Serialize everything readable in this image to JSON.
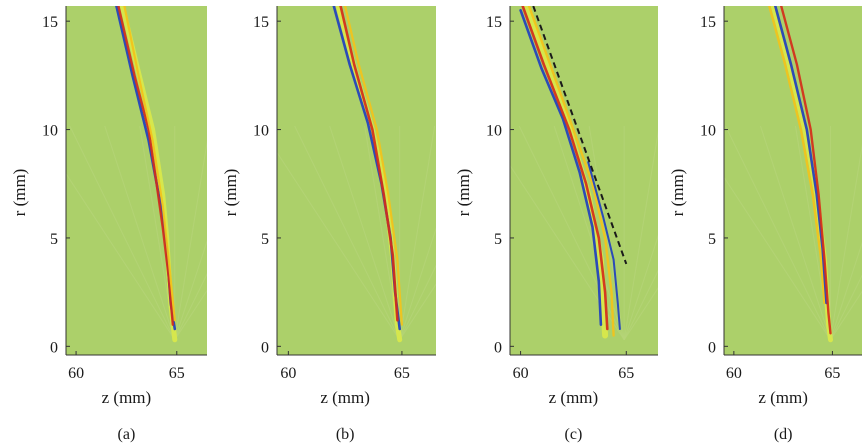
{
  "chart_data": [
    {
      "type": "heatmap",
      "caption": "(a)",
      "xlabel": "z (mm)",
      "ylabel": "r (mm)",
      "xticks": [
        "60",
        "65"
      ],
      "yticks": [
        "0",
        "5",
        "10",
        "15"
      ],
      "xlim": [
        59.5,
        66.5
      ],
      "ylim": [
        -0.4,
        15.7
      ],
      "wavefronts": [
        {
          "color": "#d9e84a",
          "width": 5,
          "points": [
            [
              62.3,
              15.7
            ],
            [
              63.0,
              13
            ],
            [
              63.8,
              10
            ],
            [
              64.3,
              7
            ],
            [
              64.5,
              5
            ],
            [
              64.7,
              2
            ],
            [
              64.9,
              0.3
            ]
          ]
        },
        {
          "color": "#1f3fbf",
          "width": 2.6,
          "points": [
            [
              62.0,
              15.7
            ],
            [
              62.8,
              12.5
            ],
            [
              63.6,
              9.5
            ],
            [
              64.2,
              6.5
            ],
            [
              64.5,
              4.5
            ],
            [
              64.7,
              2
            ],
            [
              64.9,
              0.8
            ]
          ]
        },
        {
          "color": "#d42c1a",
          "width": 2.4,
          "points": [
            [
              62.1,
              15.7
            ],
            [
              62.9,
              12.5
            ],
            [
              63.6,
              10
            ],
            [
              64.0,
              7.5
            ],
            [
              64.3,
              5.5
            ],
            [
              64.6,
              3.2
            ],
            [
              64.8,
              1
            ]
          ]
        },
        {
          "color": "#f3c21a",
          "width": 2.2,
          "points": [
            [
              62.4,
              15.7
            ],
            [
              63.1,
              12.5
            ],
            [
              63.8,
              9.5
            ],
            [
              64.3,
              6.5
            ],
            [
              64.6,
              4
            ],
            [
              64.9,
              1.2
            ]
          ]
        }
      ]
    },
    {
      "type": "heatmap",
      "caption": "(b)",
      "xlabel": "z (mm)",
      "ylabel": "r (mm)",
      "xticks": [
        "60",
        "65"
      ],
      "yticks": [
        "0",
        "5",
        "10",
        "15"
      ],
      "xlim": [
        59.5,
        66.5
      ],
      "ylim": [
        -0.4,
        15.7
      ],
      "wavefronts": [
        {
          "color": "#d9e84a",
          "width": 5,
          "points": [
            [
              62.2,
              15.7
            ],
            [
              63.0,
              12.5
            ],
            [
              63.7,
              10
            ],
            [
              64.3,
              7
            ],
            [
              64.6,
              4
            ],
            [
              64.8,
              1
            ],
            [
              64.9,
              0.3
            ]
          ]
        },
        {
          "color": "#1f3fbf",
          "width": 2.6,
          "points": [
            [
              62.0,
              15.7
            ],
            [
              62.7,
              13
            ],
            [
              63.5,
              10.3
            ],
            [
              64.1,
              7.5
            ],
            [
              64.5,
              5
            ],
            [
              64.7,
              2.5
            ],
            [
              64.9,
              0.8
            ]
          ]
        },
        {
          "color": "#d42c1a",
          "width": 2.6,
          "points": [
            [
              62.3,
              15.7
            ],
            [
              62.9,
              13
            ],
            [
              63.7,
              10
            ],
            [
              64.2,
              7
            ],
            [
              64.6,
              4.2
            ],
            [
              64.8,
              1.2
            ]
          ]
        },
        {
          "color": "#f3c21a",
          "width": 2.2,
          "points": [
            [
              62.5,
              15.7
            ],
            [
              63.1,
              13
            ],
            [
              63.9,
              10
            ],
            [
              64.4,
              7
            ],
            [
              64.8,
              4
            ],
            [
              65.0,
              1
            ]
          ]
        }
      ]
    },
    {
      "type": "heatmap",
      "caption": "(c)",
      "xlabel": "z (mm)",
      "ylabel": "r (mm)",
      "xticks": [
        "60",
        "65"
      ],
      "yticks": [
        "0",
        "5",
        "10",
        "15"
      ],
      "xlim": [
        59.5,
        66.5
      ],
      "ylim": [
        -0.4,
        15.7
      ],
      "dashed_line": [
        [
          60.6,
          15.7
        ],
        [
          65.0,
          3.8
        ]
      ],
      "wavefronts": [
        {
          "color": "#d9e84a",
          "width": 6,
          "points": [
            [
              60.3,
              15.7
            ],
            [
              61.2,
              13
            ],
            [
              62.3,
              10
            ],
            [
              63.2,
              7
            ],
            [
              63.8,
              4
            ],
            [
              64.0,
              0.5
            ]
          ]
        },
        {
          "color": "#1f3fbf",
          "width": 2.6,
          "points": [
            [
              60.0,
              15.5
            ],
            [
              61.0,
              12.8
            ],
            [
              62.0,
              10.5
            ],
            [
              62.8,
              8
            ],
            [
              63.4,
              5.5
            ],
            [
              63.7,
              3
            ],
            [
              63.8,
              1
            ]
          ]
        },
        {
          "color": "#d42c1a",
          "width": 2.6,
          "points": [
            [
              60.1,
              15.7
            ],
            [
              61.1,
              13
            ],
            [
              62.3,
              10
            ],
            [
              63.1,
              7.5
            ],
            [
              63.7,
              5
            ],
            [
              64.0,
              2.5
            ],
            [
              64.1,
              0.8
            ]
          ]
        },
        {
          "color": "#f3c21a",
          "width": 2.4,
          "points": [
            [
              60.4,
              15.7
            ],
            [
              61.4,
              13
            ],
            [
              62.5,
              10
            ],
            [
              63.4,
              7.5
            ],
            [
              64.0,
              5
            ],
            [
              64.3,
              2.5
            ],
            [
              64.4,
              0.5
            ]
          ]
        },
        {
          "color": "#1f3fbf",
          "width": 2.0,
          "points": [
            [
              63.2,
              8.5
            ],
            [
              63.9,
              6
            ],
            [
              64.4,
              4
            ],
            [
              64.6,
              2
            ],
            [
              64.7,
              0.8
            ]
          ]
        }
      ]
    },
    {
      "type": "heatmap",
      "caption": "(d)",
      "xlabel": "z (mm)",
      "ylabel": "r (mm)",
      "xticks": [
        "60",
        "65"
      ],
      "yticks": [
        "0",
        "5",
        "10",
        "15"
      ],
      "xlim": [
        59.5,
        66.5
      ],
      "ylim": [
        -0.4,
        15.7
      ],
      "wavefronts": [
        {
          "color": "#d9e84a",
          "width": 5,
          "points": [
            [
              62.0,
              15.7
            ],
            [
              62.8,
              13
            ],
            [
              63.6,
              10
            ],
            [
              64.2,
              7
            ],
            [
              64.6,
              4
            ],
            [
              64.8,
              1
            ],
            [
              64.9,
              0.3
            ]
          ]
        },
        {
          "color": "#f3c21a",
          "width": 2.4,
          "points": [
            [
              61.8,
              15.7
            ],
            [
              62.6,
              13
            ],
            [
              63.4,
              10
            ],
            [
              64.0,
              7
            ],
            [
              64.4,
              4.2
            ],
            [
              64.6,
              2
            ]
          ]
        },
        {
          "color": "#1f3fbf",
          "width": 2.6,
          "points": [
            [
              62.1,
              15.7
            ],
            [
              62.9,
              13
            ],
            [
              63.7,
              10
            ],
            [
              64.2,
              7
            ],
            [
              64.5,
              4.5
            ],
            [
              64.7,
              2
            ]
          ]
        },
        {
          "color": "#d42c1a",
          "width": 2.4,
          "points": [
            [
              62.4,
              15.7
            ],
            [
              63.2,
              13
            ],
            [
              63.9,
              10
            ],
            [
              64.3,
              7
            ],
            [
              64.6,
              4
            ],
            [
              64.8,
              1.5
            ],
            [
              64.9,
              0.6
            ]
          ]
        }
      ]
    }
  ]
}
